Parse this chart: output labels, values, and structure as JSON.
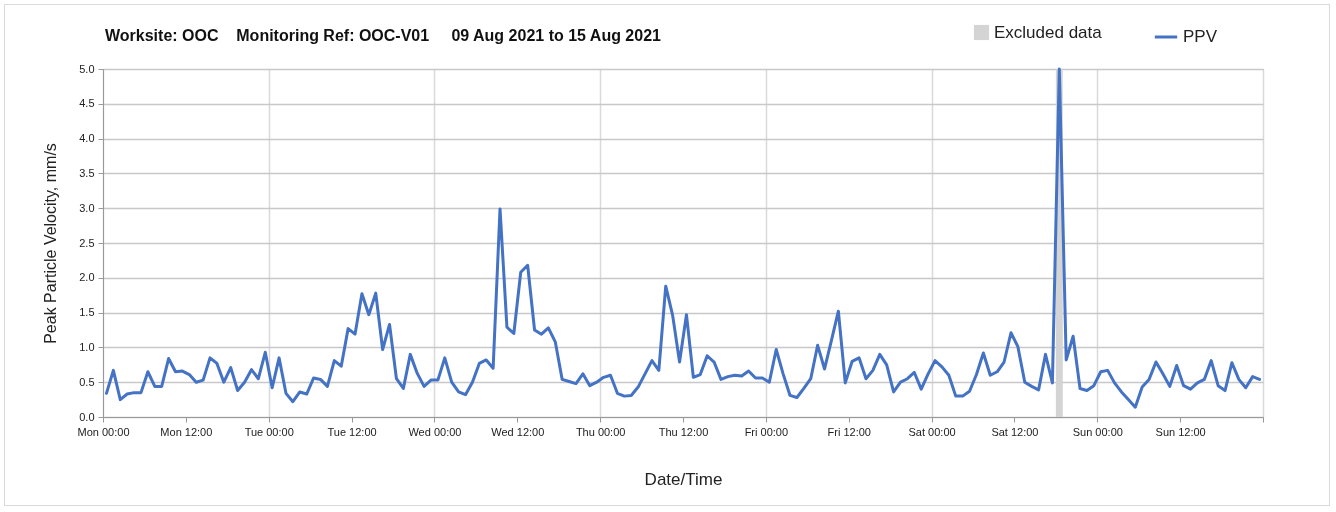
{
  "chart_data": {
    "type": "line",
    "title": "Worksite: OOC    Monitoring Ref: OOC-V01     09 Aug 2021 to 15 Aug 2021",
    "xlabel": "Date/Time",
    "ylabel": "Peak Particle Velocity, mm/s",
    "x": [
      "2021-08-09T00:30",
      "2021-08-09T01:30",
      "2021-08-09T02:30",
      "2021-08-09T03:30",
      "2021-08-09T04:30",
      "2021-08-09T05:30",
      "2021-08-09T06:30",
      "2021-08-09T07:30",
      "2021-08-09T08:30",
      "2021-08-09T09:30",
      "2021-08-09T10:30",
      "2021-08-09T11:30",
      "2021-08-09T12:30",
      "2021-08-09T13:30",
      "2021-08-09T14:30",
      "2021-08-09T15:30",
      "2021-08-09T16:30",
      "2021-08-09T17:30",
      "2021-08-09T18:30",
      "2021-08-09T19:30",
      "2021-08-09T20:30",
      "2021-08-09T21:30",
      "2021-08-09T22:30",
      "2021-08-09T23:30",
      "2021-08-10T00:30",
      "2021-08-10T01:30",
      "2021-08-10T02:30",
      "2021-08-10T03:30",
      "2021-08-10T04:30",
      "2021-08-10T05:30",
      "2021-08-10T06:30",
      "2021-08-10T07:30",
      "2021-08-10T08:30",
      "2021-08-10T09:30",
      "2021-08-10T10:30",
      "2021-08-10T11:30",
      "2021-08-10T12:30",
      "2021-08-10T13:30",
      "2021-08-10T14:30",
      "2021-08-10T15:30",
      "2021-08-10T16:30",
      "2021-08-10T17:30",
      "2021-08-10T18:30",
      "2021-08-10T19:30",
      "2021-08-10T20:30",
      "2021-08-10T21:30",
      "2021-08-10T22:30",
      "2021-08-10T23:30",
      "2021-08-11T00:30",
      "2021-08-11T01:30",
      "2021-08-11T02:30",
      "2021-08-11T03:30",
      "2021-08-11T04:30",
      "2021-08-11T05:30",
      "2021-08-11T06:30",
      "2021-08-11T07:30",
      "2021-08-11T08:30",
      "2021-08-11T09:30",
      "2021-08-11T10:30",
      "2021-08-11T11:30",
      "2021-08-11T12:30",
      "2021-08-11T13:30",
      "2021-08-11T14:30",
      "2021-08-11T15:30",
      "2021-08-11T16:30",
      "2021-08-11T17:30",
      "2021-08-11T18:30",
      "2021-08-11T19:30",
      "2021-08-11T20:30",
      "2021-08-11T21:30",
      "2021-08-11T22:30",
      "2021-08-11T23:30",
      "2021-08-12T00:30",
      "2021-08-12T01:30",
      "2021-08-12T02:30",
      "2021-08-12T03:30",
      "2021-08-12T04:30",
      "2021-08-12T05:30",
      "2021-08-12T06:30",
      "2021-08-12T07:30",
      "2021-08-12T08:30",
      "2021-08-12T09:30",
      "2021-08-12T10:30",
      "2021-08-12T11:30",
      "2021-08-12T12:30",
      "2021-08-12T13:30",
      "2021-08-12T14:30",
      "2021-08-12T15:30",
      "2021-08-12T16:30",
      "2021-08-12T17:30",
      "2021-08-12T18:30",
      "2021-08-12T19:30",
      "2021-08-12T20:30",
      "2021-08-12T21:30",
      "2021-08-12T22:30",
      "2021-08-12T23:30",
      "2021-08-13T00:30",
      "2021-08-13T01:30",
      "2021-08-13T02:30",
      "2021-08-13T03:30",
      "2021-08-13T04:30",
      "2021-08-13T05:30",
      "2021-08-13T06:30",
      "2021-08-13T07:30",
      "2021-08-13T08:30",
      "2021-08-13T09:30",
      "2021-08-13T10:30",
      "2021-08-13T11:30",
      "2021-08-13T12:30",
      "2021-08-13T13:30",
      "2021-08-13T14:30",
      "2021-08-13T15:30",
      "2021-08-13T16:30",
      "2021-08-13T17:30",
      "2021-08-13T18:30",
      "2021-08-13T19:30",
      "2021-08-13T20:30",
      "2021-08-13T21:30",
      "2021-08-13T22:30",
      "2021-08-13T23:30",
      "2021-08-14T00:30",
      "2021-08-14T01:30",
      "2021-08-14T02:30",
      "2021-08-14T03:30",
      "2021-08-14T04:30",
      "2021-08-14T05:30",
      "2021-08-14T06:30",
      "2021-08-14T07:30",
      "2021-08-14T08:30",
      "2021-08-14T09:30",
      "2021-08-14T10:30",
      "2021-08-14T11:30",
      "2021-08-14T12:30",
      "2021-08-14T13:30",
      "2021-08-14T14:30",
      "2021-08-14T15:30",
      "2021-08-14T16:30",
      "2021-08-14T17:30",
      "2021-08-14T18:30",
      "2021-08-14T19:30",
      "2021-08-14T20:30",
      "2021-08-14T21:30",
      "2021-08-14T22:30",
      "2021-08-14T23:30",
      "2021-08-15T00:30",
      "2021-08-15T01:30",
      "2021-08-15T02:30",
      "2021-08-15T03:30",
      "2021-08-15T04:30",
      "2021-08-15T05:30",
      "2021-08-15T06:30",
      "2021-08-15T07:30",
      "2021-08-15T08:30",
      "2021-08-15T09:30",
      "2021-08-15T10:30",
      "2021-08-15T11:30",
      "2021-08-15T12:30",
      "2021-08-15T13:30",
      "2021-08-15T14:30",
      "2021-08-15T15:30",
      "2021-08-15T16:30",
      "2021-08-15T17:30",
      "2021-08-15T18:30",
      "2021-08-15T19:30",
      "2021-08-15T20:30",
      "2021-08-15T21:30",
      "2021-08-15T22:30",
      "2021-08-15T23:30"
    ],
    "series": [
      {
        "name": "PPV",
        "color": "#4472c4",
        "values": [
          0.34,
          0.67,
          0.25,
          0.33,
          0.35,
          0.35,
          0.65,
          0.44,
          0.44,
          0.84,
          0.65,
          0.66,
          0.61,
          0.5,
          0.53,
          0.85,
          0.77,
          0.5,
          0.71,
          0.38,
          0.5,
          0.68,
          0.55,
          0.93,
          0.42,
          0.85,
          0.34,
          0.22,
          0.36,
          0.33,
          0.56,
          0.54,
          0.44,
          0.81,
          0.73,
          1.27,
          1.19,
          1.77,
          1.47,
          1.78,
          0.97,
          1.33,
          0.55,
          0.41,
          0.9,
          0.63,
          0.44,
          0.53,
          0.53,
          0.85,
          0.5,
          0.36,
          0.32,
          0.5,
          0.77,
          0.82,
          0.7,
          2.99,
          1.29,
          1.2,
          2.08,
          2.18,
          1.25,
          1.19,
          1.28,
          1.08,
          0.54,
          0.51,
          0.48,
          0.62,
          0.45,
          0.5,
          0.57,
          0.6,
          0.34,
          0.3,
          0.31,
          0.43,
          0.62,
          0.81,
          0.67,
          1.88,
          1.46,
          0.79,
          1.47,
          0.57,
          0.61,
          0.88,
          0.79,
          0.54,
          0.58,
          0.6,
          0.59,
          0.66,
          0.56,
          0.56,
          0.5,
          0.97,
          0.62,
          0.31,
          0.28,
          0.41,
          0.55,
          1.03,
          0.69,
          1.1,
          1.52,
          0.49,
          0.8,
          0.85,
          0.55,
          0.67,
          0.9,
          0.75,
          0.36,
          0.5,
          0.55,
          0.64,
          0.4,
          0.62,
          0.81,
          0.72,
          0.6,
          0.3,
          0.3,
          0.37,
          0.61,
          0.92,
          0.6,
          0.65,
          0.79,
          1.21,
          1.01,
          0.5,
          0.44,
          0.39,
          0.9,
          0.49,
          5.0,
          0.82,
          1.16,
          0.41,
          0.38,
          0.45,
          0.65,
          0.67,
          0.49,
          0.36,
          0.25,
          0.14,
          0.43,
          0.54,
          0.79,
          0.62,
          0.44,
          0.74,
          0.45,
          0.4,
          0.49,
          0.54,
          0.81,
          0.45,
          0.38,
          0.78,
          0.54,
          0.42,
          0.58,
          0.54
        ]
      }
    ],
    "bands": [
      {
        "axis": "x",
        "from": "2021-08-14T18:00",
        "to": "2021-08-14T19:00",
        "label": "Excluded data",
        "color": "#d4d4d4"
      }
    ],
    "xlim": [
      "2021-08-09T00:00",
      "2021-08-16T00:00"
    ],
    "xticks": [
      {
        "value": "2021-08-09T00:00",
        "label": "Mon 00:00"
      },
      {
        "value": "2021-08-09T12:00",
        "label": "Mon 12:00"
      },
      {
        "value": "2021-08-10T00:00",
        "label": "Tue 00:00"
      },
      {
        "value": "2021-08-10T12:00",
        "label": "Tue 12:00"
      },
      {
        "value": "2021-08-11T00:00",
        "label": "Wed 00:00"
      },
      {
        "value": "2021-08-11T12:00",
        "label": "Wed 12:00"
      },
      {
        "value": "2021-08-12T00:00",
        "label": "Thu 00:00"
      },
      {
        "value": "2021-08-12T12:00",
        "label": "Thu 12:00"
      },
      {
        "value": "2021-08-13T00:00",
        "label": "Fri 00:00"
      },
      {
        "value": "2021-08-13T12:00",
        "label": "Fri 12:00"
      },
      {
        "value": "2021-08-14T00:00",
        "label": "Sat 00:00"
      },
      {
        "value": "2021-08-14T12:00",
        "label": "Sat 12:00"
      },
      {
        "value": "2021-08-15T00:00",
        "label": "Sun 00:00"
      },
      {
        "value": "2021-08-15T12:00",
        "label": "Sun 12:00"
      },
      {
        "value": "2021-08-16T00:00",
        "label": null
      }
    ],
    "ylim": [
      0,
      5
    ],
    "yticks": [
      {
        "value": 0,
        "label": "0.0"
      },
      {
        "value": 0.5,
        "label": "0.5"
      },
      {
        "value": 1,
        "label": "1.0"
      },
      {
        "value": 1.5,
        "label": "1.5"
      },
      {
        "value": 2,
        "label": "2.0"
      },
      {
        "value": 2.5,
        "label": "2.5"
      },
      {
        "value": 3,
        "label": "3.0"
      },
      {
        "value": 3.5,
        "label": "3.5"
      },
      {
        "value": 4,
        "label": "4.0"
      },
      {
        "value": 4.5,
        "label": "4.5"
      },
      {
        "value": 5,
        "label": "5.0"
      }
    ],
    "grid": true,
    "legend": "top right"
  }
}
